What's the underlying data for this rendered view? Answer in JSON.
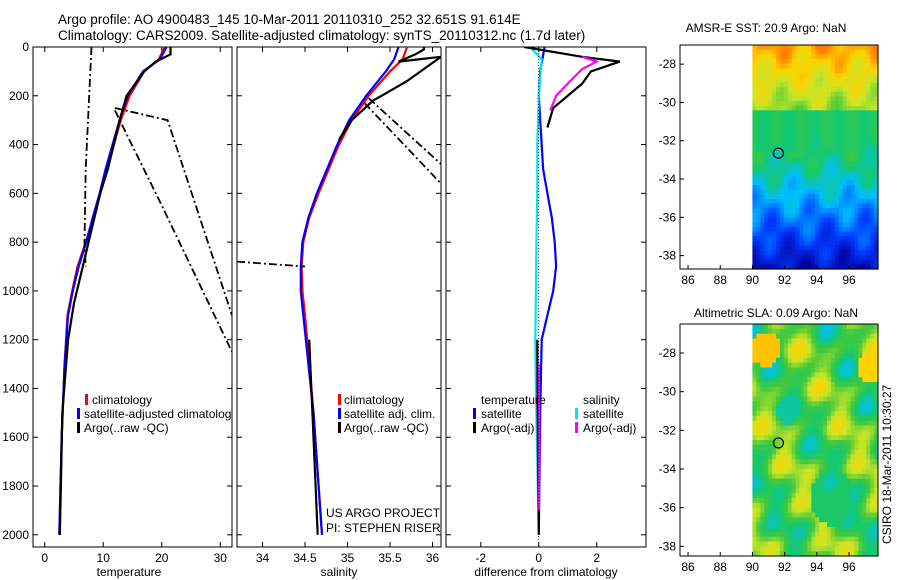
{
  "header": {
    "line1": "Argo profile: AO 4900483_145 10-Mar-2011 20110310_252 32.651S 91.614E",
    "line2": "Climatology: CARS2009. Satellite-adjusted climatology: synTS_20110312.nc (1.7d later)"
  },
  "footer": {
    "project": "US ARGO PROJECT",
    "pi": "PI: STEPHEN RISER",
    "stamp": "CSIRO 18-Mar-2011 10:30:27"
  },
  "colors": {
    "climatology": "#ff0000",
    "satellite": "#0000ff",
    "argo": "#000000",
    "sal_satellite": "#00e5ee",
    "sal_argo": "#ff00ff"
  },
  "chart_data": [
    {
      "type": "line",
      "id": "temperature",
      "xlabel": "temperature",
      "xlim": [
        -2,
        32
      ],
      "ylim": [
        0,
        2050
      ],
      "xticks": [
        0,
        10,
        20,
        30
      ],
      "yticks": [
        0,
        200,
        400,
        600,
        800,
        1000,
        1200,
        1400,
        1600,
        1800,
        2000
      ],
      "legend": [
        "climatology",
        "satellite-adjusted climatology",
        "Argo(..raw -QC)"
      ],
      "series": [
        {
          "name": "climatology",
          "color": "#ff0000",
          "x": [
            20.5,
            19.5,
            17,
            14.5,
            13,
            11.8,
            10.5,
            9.5,
            8.3,
            7,
            5.6,
            4.7,
            3.9,
            3.4,
            2.9,
            2.5
          ],
          "y": [
            0,
            50,
            100,
            200,
            300,
            400,
            500,
            600,
            700,
            800,
            900,
            1000,
            1100,
            1300,
            1600,
            2000
          ]
        },
        {
          "name": "satellite",
          "color": "#0000ff",
          "x": [
            20.8,
            19.7,
            16.8,
            14.2,
            12.8,
            11.6,
            10.4,
            9.4,
            8.2,
            7.1,
            5.8,
            4.8,
            4.0,
            3.4,
            2.9,
            2.5
          ],
          "y": [
            0,
            50,
            100,
            200,
            300,
            400,
            500,
            600,
            700,
            800,
            900,
            1000,
            1100,
            1300,
            1600,
            2000
          ]
        },
        {
          "name": "argo",
          "color": "#000000",
          "x": [
            21.5,
            21.5,
            19,
            17,
            15.5,
            14,
            12.8,
            11.8,
            10.8,
            9.5,
            8,
            6.5,
            5,
            4,
            3,
            2.6
          ],
          "y": [
            0,
            30,
            60,
            100,
            150,
            200,
            300,
            400,
            500,
            600,
            750,
            900,
            1050,
            1200,
            1500,
            2000
          ]
        },
        {
          "name": "argo-raw-1",
          "color": "#000000",
          "dash": true,
          "x": [
            8,
            7.5,
            7,
            6.8,
            7
          ],
          "y": [
            0,
            250,
            500,
            800,
            900
          ]
        },
        {
          "name": "argo-raw-2",
          "color": "#000000",
          "dash": true,
          "x": [
            12,
            21,
            32
          ],
          "y": [
            250,
            300,
            1100
          ]
        },
        {
          "name": "argo-raw-3",
          "color": "#000000",
          "dash": true,
          "x": [
            12,
            20,
            32
          ],
          "y": [
            260,
            650,
            1250
          ]
        }
      ]
    },
    {
      "type": "line",
      "id": "salinity",
      "xlabel": "salinity",
      "xlim": [
        33.7,
        36.1
      ],
      "ylim": [
        0,
        2050
      ],
      "xticks": [
        34,
        34.5,
        35,
        35.5,
        36
      ],
      "legend": [
        "climatology",
        "satellite adj. clim.",
        "Argo(..raw -QC)"
      ],
      "series": [
        {
          "name": "climatology",
          "color": "#ff0000",
          "x": [
            35.7,
            35.65,
            35.5,
            35.25,
            35.05,
            34.9,
            34.78,
            34.66,
            34.55,
            34.48,
            34.46,
            34.47,
            34.5,
            34.6,
            34.7
          ],
          "y": [
            0,
            50,
            100,
            200,
            300,
            400,
            500,
            600,
            700,
            800,
            900,
            1000,
            1100,
            1500,
            2000
          ]
        },
        {
          "name": "satellite",
          "color": "#0000ff",
          "x": [
            35.6,
            35.55,
            35.45,
            35.22,
            35.02,
            34.88,
            34.76,
            34.64,
            34.54,
            34.47,
            34.45,
            34.45,
            34.48,
            34.6,
            34.7
          ],
          "y": [
            0,
            50,
            100,
            200,
            300,
            400,
            500,
            600,
            700,
            800,
            900,
            1000,
            1100,
            1500,
            2000
          ]
        },
        {
          "name": "argo",
          "color": "#000000",
          "x": [
            35.9,
            35.9,
            35.8,
            35.6,
            36.1,
            35.7,
            35.5,
            35.3,
            35.05,
            34.9
          ],
          "y": [
            0,
            10,
            30,
            60,
            40,
            140,
            180,
            220,
            300,
            380
          ]
        },
        {
          "name": "argo-deep",
          "color": "#000000",
          "x": [
            34.55,
            34.6,
            34.65
          ],
          "y": [
            1200,
            1600,
            2000
          ]
        },
        {
          "name": "argo-raw-1",
          "color": "#000000",
          "dash": true,
          "x": [
            33.7,
            34.1,
            34.5
          ],
          "y": [
            880,
            890,
            900
          ]
        },
        {
          "name": "argo-raw-2",
          "color": "#000000",
          "dash": true,
          "x": [
            35.25,
            36.1
          ],
          "y": [
            210,
            480
          ]
        },
        {
          "name": "argo-raw-3",
          "color": "#000000",
          "dash": true,
          "x": [
            35.2,
            36.1
          ],
          "y": [
            230,
            560
          ]
        }
      ]
    },
    {
      "type": "line",
      "id": "difference",
      "xlabel": "difference from climatology",
      "xlim": [
        -3.2,
        3.7
      ],
      "ylim": [
        0,
        2050
      ],
      "xticks": [
        -2,
        0,
        2
      ],
      "legend_titles": [
        "temperature",
        "salinity"
      ],
      "legend": [
        "satellite",
        "Argo(-adj)",
        "satellite",
        "Argo(-adj)"
      ],
      "series": [
        {
          "name": "temp satellite",
          "color": "#0000ff",
          "x": [
            0.2,
            0.05,
            0.0,
            0.05,
            0.1,
            0.15,
            0.3,
            0.45,
            0.55,
            0.6,
            0.5,
            0.3,
            0.1,
            0.05,
            0.0
          ],
          "y": [
            0,
            100,
            200,
            300,
            400,
            500,
            600,
            700,
            800,
            900,
            1000,
            1100,
            1200,
            1500,
            2000
          ]
        },
        {
          "name": "sal satellite",
          "color": "#00e5ee",
          "x": [
            -0.3,
            0.1,
            0.0,
            -0.05,
            -0.05,
            -0.08,
            -0.1,
            -0.12,
            -0.1,
            -0.05,
            0.0
          ],
          "y": [
            0,
            50,
            200,
            400,
            600,
            800,
            1000,
            1200,
            1400,
            1700,
            2000
          ]
        },
        {
          "name": "temp argo",
          "color": "#000000",
          "x": [
            -0.5,
            1.5,
            2.8,
            1.8,
            1.5,
            0.5,
            0.3
          ],
          "y": [
            0,
            40,
            60,
            100,
            150,
            250,
            330
          ]
        },
        {
          "name": "sal argo",
          "color": "#ff00ff",
          "x": [
            1.5,
            2.0,
            1.5,
            1.0,
            0.6,
            0.4
          ],
          "y": [
            40,
            60,
            90,
            150,
            200,
            260
          ]
        },
        {
          "name": "argo deep",
          "color": "#000000",
          "x": [
            -0.05,
            -0.03,
            0.0
          ],
          "y": [
            1200,
            1600,
            2000
          ]
        },
        {
          "name": "sal argo deep",
          "color": "#ff00ff",
          "x": [
            0.0,
            0.02,
            0.0
          ],
          "y": [
            1300,
            1600,
            1900
          ]
        }
      ]
    },
    {
      "type": "heatmap",
      "id": "sst-map",
      "title": "AMSR-E SST: 20.9 Argo: NaN",
      "xticks": [
        86,
        88,
        90,
        92,
        94,
        96
      ],
      "yticks": [
        -28,
        -30,
        -32,
        -34,
        -36,
        -38
      ],
      "xlim": [
        85.5,
        97.8
      ],
      "ylim": [
        -27,
        -38.7
      ],
      "marker": {
        "lon": 91.614,
        "lat": -32.651
      }
    },
    {
      "type": "heatmap",
      "id": "sla-map",
      "title": "Altimetric SLA: 0.09 Argo: NaN",
      "xticks": [
        86,
        88,
        90,
        92,
        94,
        96
      ],
      "yticks": [
        -28,
        -30,
        -32,
        -34,
        -36,
        -38
      ],
      "xlim": [
        85.5,
        97.8
      ],
      "ylim": [
        -26.5,
        -38.5
      ],
      "marker": {
        "lon": 91.614,
        "lat": -32.651
      }
    }
  ]
}
